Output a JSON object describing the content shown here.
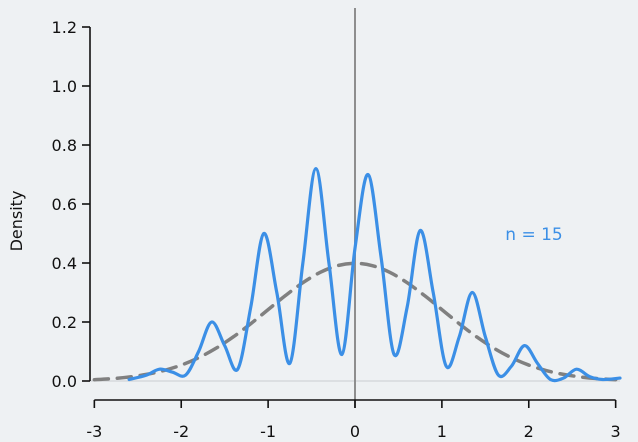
{
  "chart_data": {
    "type": "line",
    "title": "",
    "xlabel": "",
    "ylabel": "Density",
    "xlim": [
      -3.05,
      3.05
    ],
    "ylim": [
      0,
      1.2
    ],
    "x_ticks": [
      -3,
      -2,
      -1,
      0,
      1,
      2,
      3
    ],
    "x_tick_labels": [
      "-3",
      "-2",
      "-1",
      "0",
      "1",
      "2",
      "3"
    ],
    "y_ticks": [
      0.0,
      0.2,
      0.4,
      0.6,
      0.8,
      1.0,
      1.2
    ],
    "y_tick_labels": [
      "0.0",
      "0.2",
      "0.4",
      "0.6",
      "0.8",
      "1.0",
      "1.2"
    ],
    "grid": false,
    "legend": "none",
    "vertical_reference_line_x": 0,
    "annotation": "n = 15",
    "series": [
      {
        "style": "solid",
        "color": "#3b8fe6",
        "x": [
          -2.6,
          -2.4,
          -2.25,
          -2.1,
          -1.95,
          -1.8,
          -1.65,
          -1.5,
          -1.35,
          -1.2,
          -1.05,
          -0.9,
          -0.75,
          -0.6,
          -0.45,
          -0.3,
          -0.15,
          0.0,
          0.15,
          0.3,
          0.45,
          0.6,
          0.75,
          0.9,
          1.05,
          1.2,
          1.35,
          1.5,
          1.65,
          1.8,
          1.95,
          2.1,
          2.25,
          2.4,
          2.55,
          2.7,
          2.85,
          3.05
        ],
        "y": [
          0.005,
          0.02,
          0.04,
          0.03,
          0.02,
          0.1,
          0.2,
          0.12,
          0.04,
          0.25,
          0.5,
          0.3,
          0.06,
          0.4,
          0.72,
          0.4,
          0.09,
          0.45,
          0.7,
          0.42,
          0.09,
          0.25,
          0.51,
          0.3,
          0.05,
          0.15,
          0.3,
          0.15,
          0.02,
          0.05,
          0.12,
          0.06,
          0.005,
          0.01,
          0.04,
          0.015,
          0.005,
          0.01
        ]
      },
      {
        "style": "dashed",
        "color": "#808080",
        "x": [
          -3.0,
          -2.8,
          -2.6,
          -2.4,
          -2.2,
          -2.0,
          -1.8,
          -1.6,
          -1.4,
          -1.2,
          -1.0,
          -0.8,
          -0.6,
          -0.4,
          -0.2,
          0.0,
          0.2,
          0.4,
          0.6,
          0.8,
          1.0,
          1.2,
          1.4,
          1.6,
          1.8,
          2.0,
          2.2,
          2.4,
          2.6,
          2.8,
          3.0
        ],
        "y": [
          0.0044,
          0.0079,
          0.0136,
          0.0224,
          0.0355,
          0.054,
          0.079,
          0.1109,
          0.1497,
          0.1942,
          0.242,
          0.2897,
          0.3332,
          0.3683,
          0.391,
          0.3989,
          0.391,
          0.3683,
          0.3332,
          0.2897,
          0.242,
          0.1942,
          0.1497,
          0.1109,
          0.079,
          0.054,
          0.0355,
          0.0224,
          0.0136,
          0.0079,
          0.0044
        ]
      }
    ]
  }
}
